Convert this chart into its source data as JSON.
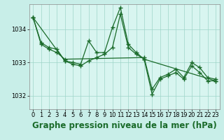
{
  "background_color": "#c8eee8",
  "plot_bg_color": "#d8f5f0",
  "grid_color": "#9ed4c8",
  "line_color": "#1a6b2a",
  "xlabel": "Graphe pression niveau de la mer (hPa)",
  "ylim": [
    1031.6,
    1034.75
  ],
  "xlim": [
    -0.5,
    23.5
  ],
  "yticks": [
    1032,
    1033,
    1034
  ],
  "xticks": [
    0,
    1,
    2,
    3,
    4,
    5,
    6,
    7,
    8,
    9,
    10,
    11,
    12,
    13,
    14,
    15,
    16,
    17,
    18,
    19,
    20,
    21,
    22,
    23
  ],
  "series": [
    {
      "x": [
        0,
        1,
        2,
        3,
        4,
        5,
        6,
        7,
        8,
        9,
        10,
        11,
        12,
        13,
        14,
        15,
        16,
        17,
        18,
        19,
        20,
        21,
        22,
        23
      ],
      "y": [
        1034.35,
        1033.6,
        1033.45,
        1033.4,
        1033.05,
        1033.0,
        1032.95,
        1033.65,
        1033.3,
        1033.3,
        1034.05,
        1034.65,
        1033.55,
        1033.3,
        1033.1,
        1032.05,
        1032.5,
        1032.6,
        1032.7,
        1032.5,
        1032.9,
        1032.7,
        1032.45,
        1032.45
      ]
    },
    {
      "x": [
        0,
        1,
        2,
        3,
        4,
        14,
        15,
        16,
        17,
        18,
        19,
        20,
        21,
        22,
        23
      ],
      "y": [
        1034.35,
        1033.55,
        1033.4,
        1033.3,
        1033.1,
        1033.15,
        1032.2,
        1032.55,
        1032.65,
        1032.8,
        1032.55,
        1033.0,
        1032.85,
        1032.55,
        1032.5
      ]
    },
    {
      "x": [
        0,
        4,
        5,
        6,
        7,
        8,
        9,
        10,
        11,
        12,
        13,
        14,
        23
      ],
      "y": [
        1034.35,
        1033.05,
        1032.95,
        1032.9,
        1033.05,
        1033.15,
        1033.25,
        1033.45,
        1034.45,
        1033.45,
        1033.25,
        1033.1,
        1032.45
      ]
    }
  ],
  "title_fontsize": 8.5,
  "tick_fontsize": 6,
  "marker_size": 4,
  "line_width": 0.9
}
